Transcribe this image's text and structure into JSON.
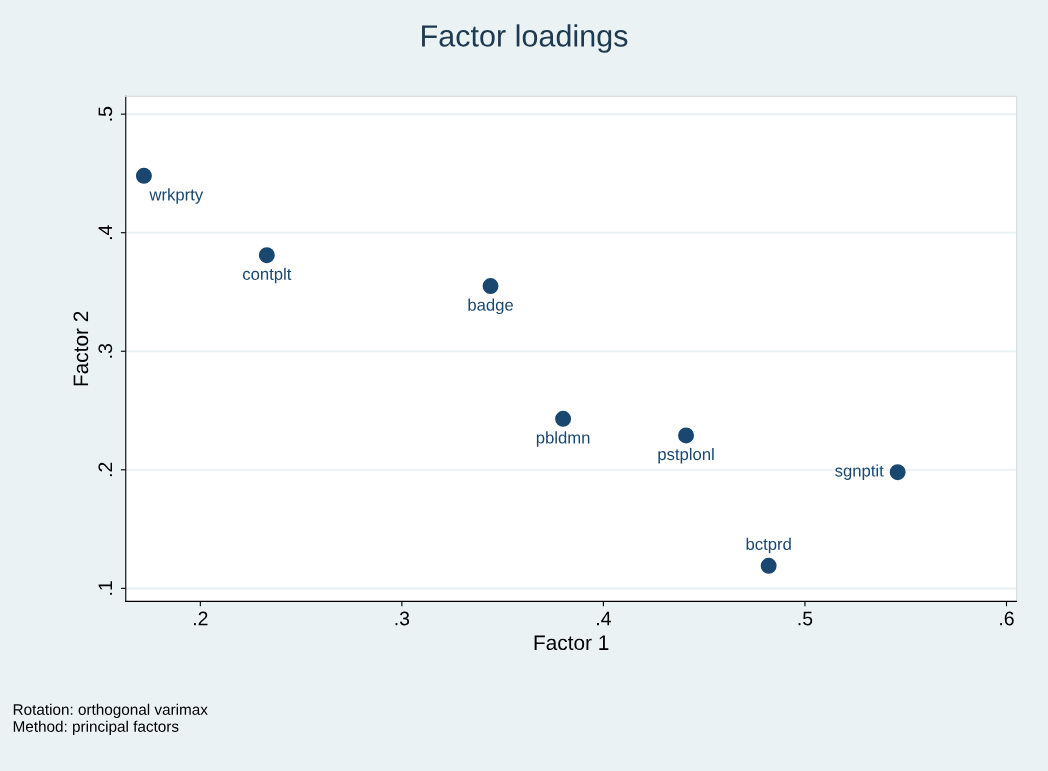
{
  "chart_data": {
    "type": "scatter",
    "title": "Factor loadings",
    "xlabel": "Factor 1",
    "ylabel": "Factor 2",
    "x": [
      0.172,
      0.233,
      0.344,
      0.38,
      0.441,
      0.546,
      0.482
    ],
    "values": [
      0.448,
      0.381,
      0.355,
      0.243,
      0.229,
      0.198,
      0.119
    ],
    "color": "#1a476f",
    "marker": "circle",
    "grid": "y",
    "xlim": [
      0.163,
      0.605
    ],
    "ylim": [
      0.089,
      0.515
    ],
    "xticks": [
      {
        "value": 0.2,
        "label": ".2"
      },
      {
        "value": 0.3,
        "label": ".3"
      },
      {
        "value": 0.4,
        "label": ".4"
      },
      {
        "value": 0.5,
        "label": ".5"
      },
      {
        "value": 0.6,
        "label": ".6"
      }
    ],
    "yticks": [
      {
        "value": 0.1,
        "label": ".1"
      },
      {
        "value": 0.2,
        "label": ".2"
      },
      {
        "value": 0.3,
        "label": ".3"
      },
      {
        "value": 0.4,
        "label": ".4"
      },
      {
        "value": 0.5,
        "label": ".5"
      }
    ],
    "annotations": [
      {
        "text": "wrkprty",
        "x": 0.172,
        "y": 0.448
      },
      {
        "text": "contplt",
        "x": 0.233,
        "y": 0.381
      },
      {
        "text": "badge",
        "x": 0.344,
        "y": 0.355
      },
      {
        "text": "pbldmn",
        "x": 0.38,
        "y": 0.243
      },
      {
        "text": "pstplonl",
        "x": 0.441,
        "y": 0.229
      },
      {
        "text": "sgnptit",
        "x": 0.546,
        "y": 0.198
      },
      {
        "text": "bctprd",
        "x": 0.482,
        "y": 0.119
      },
      "Rotation: orthogonal varimax",
      "Method: principal factors"
    ]
  }
}
